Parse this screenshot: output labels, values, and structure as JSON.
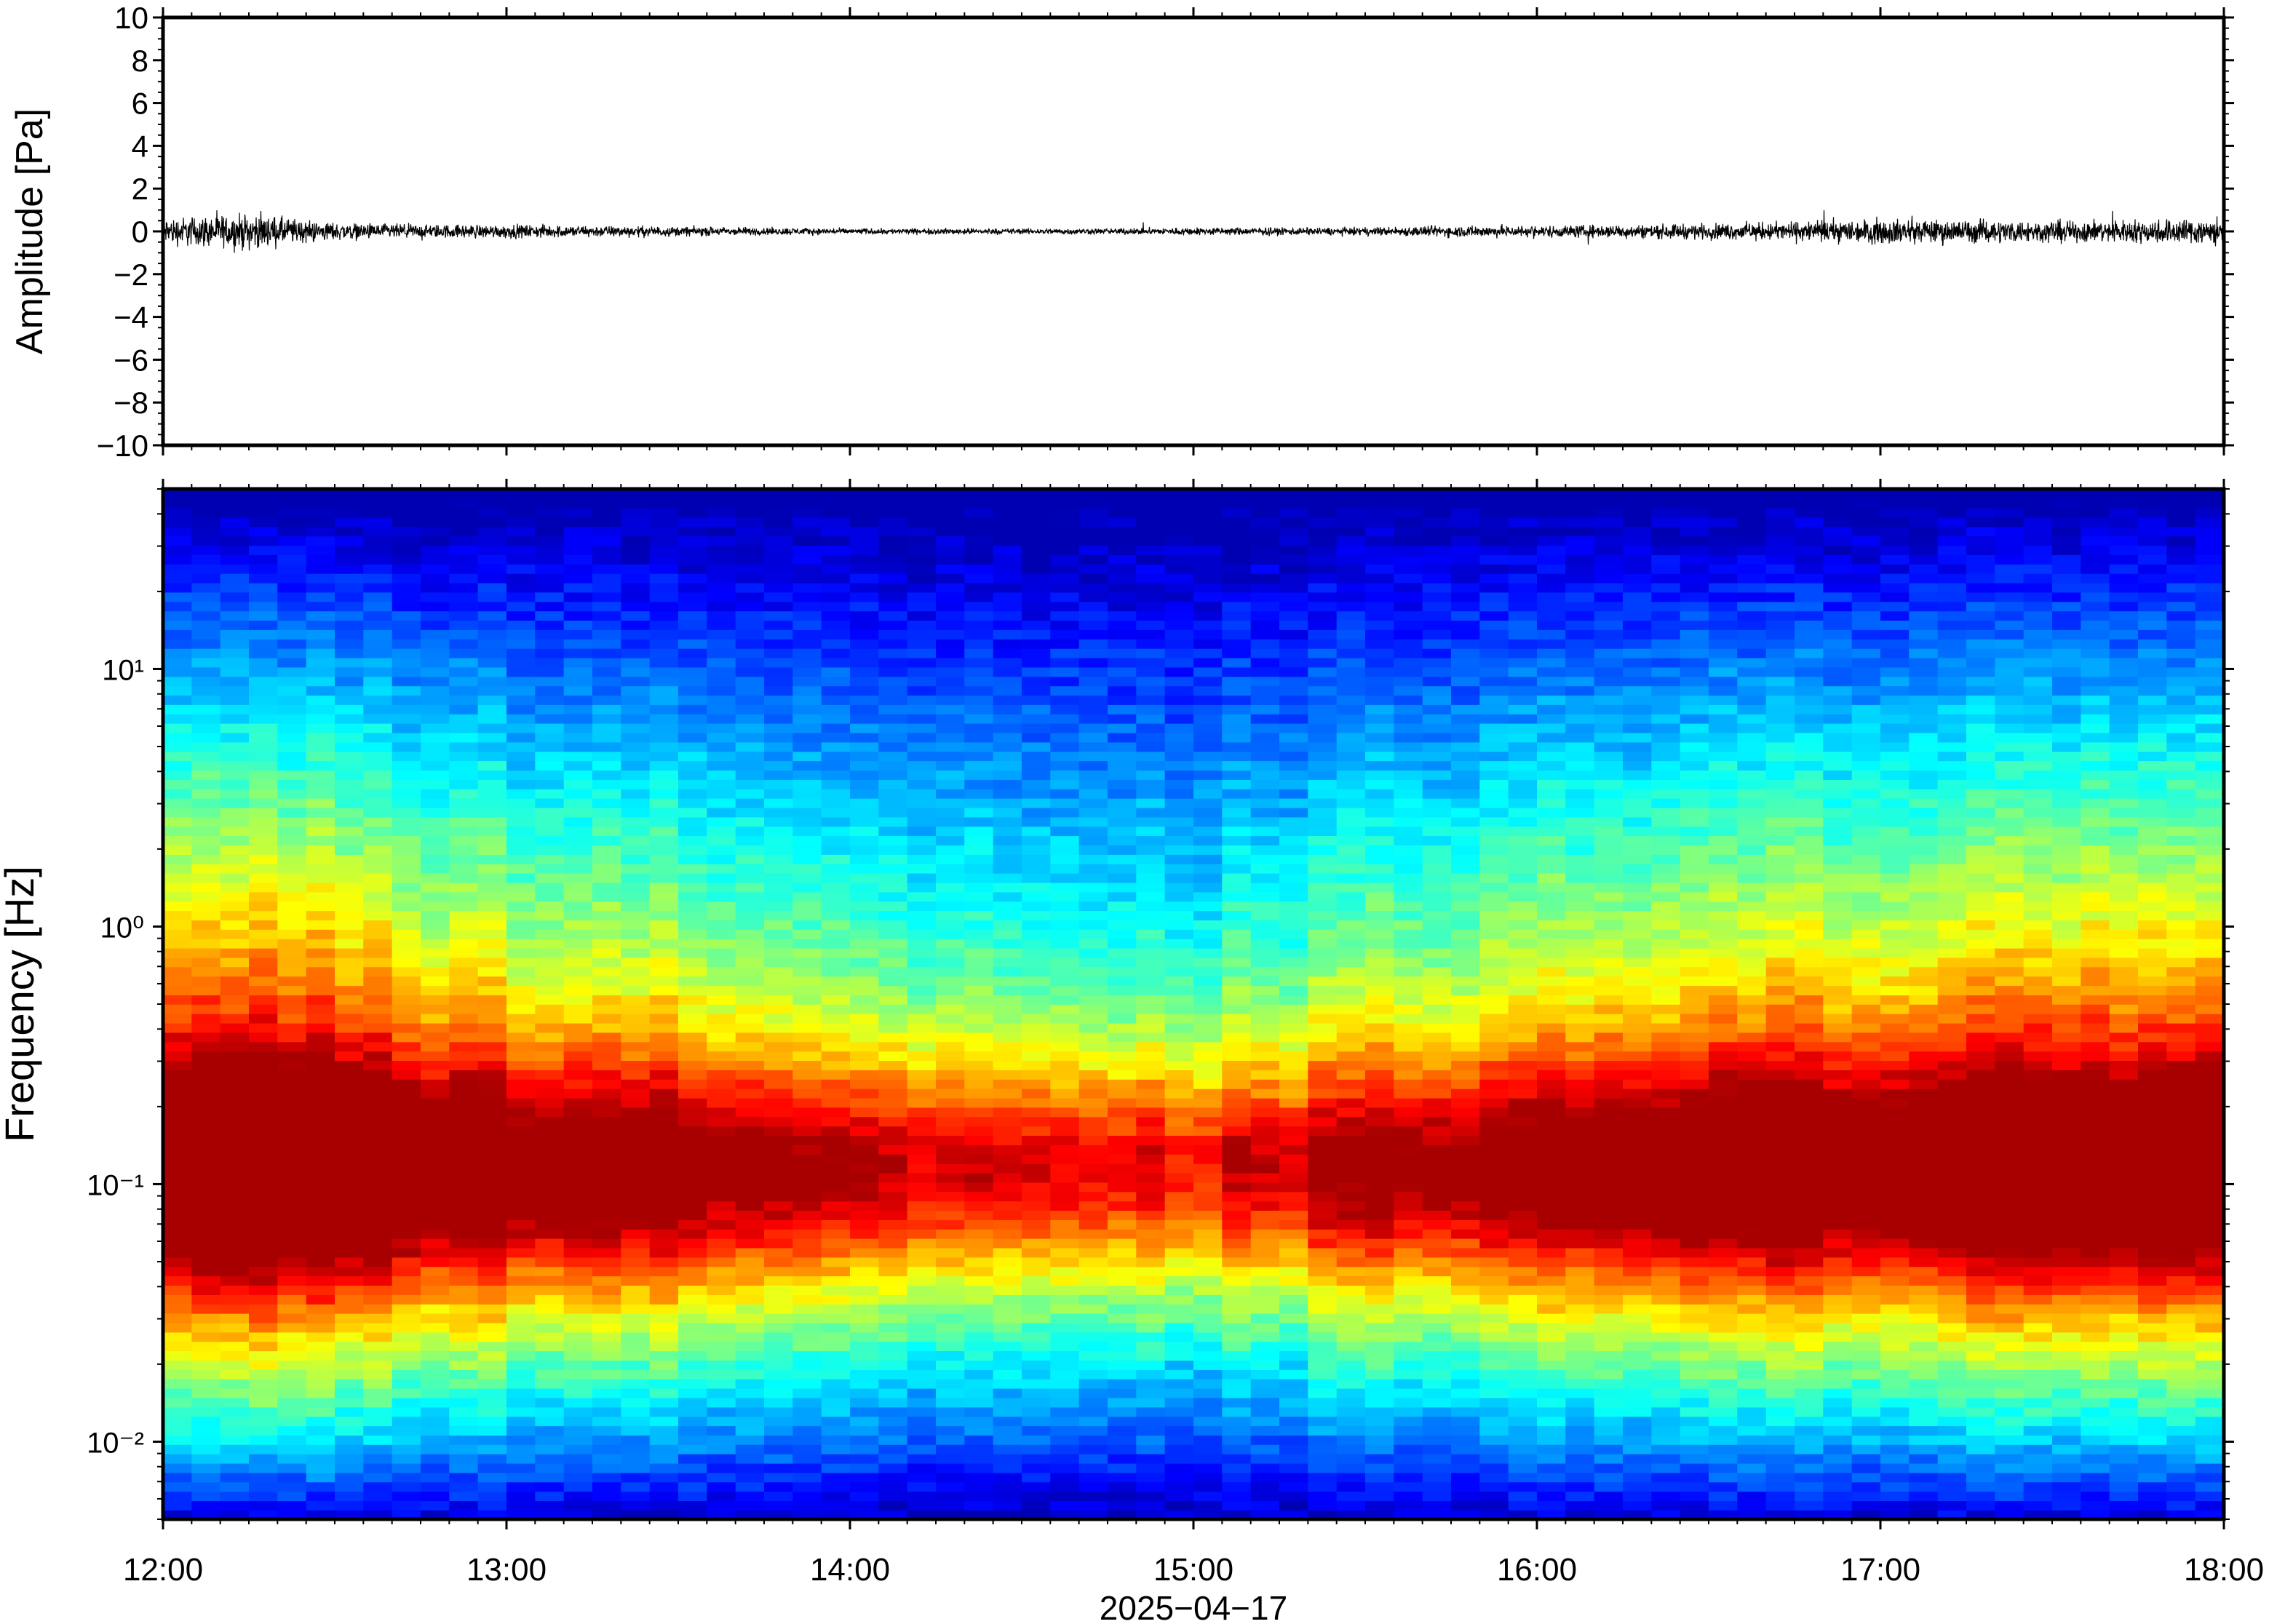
{
  "chart_data": [
    {
      "type": "line",
      "panel": "waveform",
      "ylabel": "Amplitude [Pa]",
      "ylim": [
        -10,
        10
      ],
      "yticks": [
        10,
        8,
        6,
        4,
        2,
        0,
        -2,
        -4,
        -6,
        -8,
        -10
      ],
      "ytick_labels": [
        "10",
        "8",
        "6",
        "4",
        "2",
        "0",
        "−2",
        "−4",
        "−6",
        "−8",
        "−10"
      ],
      "xlim": [
        "12:00",
        "18:00"
      ],
      "envelope": {
        "x": [
          "12:00",
          "12:15",
          "12:30",
          "12:45",
          "13:00",
          "13:15",
          "13:30",
          "13:45",
          "14:00",
          "14:15",
          "14:30",
          "14:45",
          "15:00",
          "15:15",
          "15:30",
          "15:45",
          "16:00",
          "16:15",
          "16:30",
          "16:45",
          "17:00",
          "17:15",
          "17:30",
          "17:45",
          "18:00"
        ],
        "amplitude": [
          1.4,
          1.8,
          0.9,
          0.7,
          0.7,
          0.6,
          0.5,
          0.4,
          0.3,
          0.3,
          0.3,
          0.3,
          0.4,
          0.4,
          0.4,
          0.6,
          0.6,
          0.7,
          0.8,
          1.0,
          1.3,
          1.2,
          1.1,
          1.2,
          1.5
        ]
      },
      "grid": false
    },
    {
      "type": "heatmap",
      "panel": "spectrogram",
      "ylabel": "Frequency [Hz]",
      "yscale": "log",
      "ylim": [
        0.005,
        50
      ],
      "ytick_labels": [
        "10¹",
        "10⁰",
        "10⁻¹",
        "10⁻²"
      ],
      "ytick_values": [
        10,
        1,
        0.1,
        0.01
      ],
      "xlabel": "2025−04−17",
      "xticks": [
        "12:00",
        "13:00",
        "14:00",
        "15:00",
        "16:00",
        "17:00",
        "18:00"
      ],
      "colormap": "jet",
      "colors": {
        "low": "#00008f",
        "mid": "#7fff7f",
        "high": "#ff2a1a"
      },
      "grid": false
    }
  ]
}
